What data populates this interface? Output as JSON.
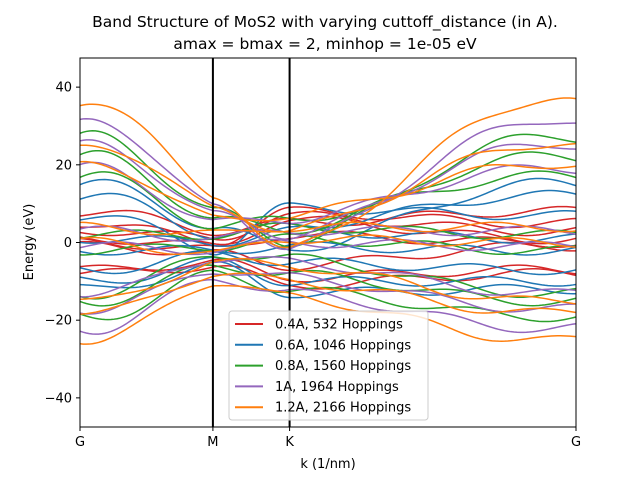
{
  "chart_data": {
    "type": "line",
    "title_line1": "Band Structure of MoS2 with varying cuttoff_distance (in A).",
    "title_line2": "amax = bmax = 2, minhop = 1e-05 eV",
    "xlabel": "k (1/nm)",
    "ylabel": "Energy (eV)",
    "xlim": [
      0,
      3.732
    ],
    "ylim": [
      -47.5,
      47.5
    ],
    "x_ticks": [
      {
        "label": "G",
        "x": 0
      },
      {
        "label": "M",
        "x": 1.0
      },
      {
        "label": "K",
        "x": 1.577
      },
      {
        "label": "G",
        "x": 3.732
      }
    ],
    "y_ticks": [
      -40,
      -20,
      0,
      20,
      40
    ],
    "symmetry_lines": [
      1.0,
      1.577
    ],
    "grid": false,
    "legend_position": "lower-center",
    "series": [
      {
        "name": "0.4A, 532 Hoppings",
        "color": "#d62728",
        "bands": [
          {
            "G": -8,
            "M": -6,
            "K": -11,
            "G2": -8
          },
          {
            "G": -7,
            "M": -5,
            "K": -9,
            "G2": -7
          },
          {
            "G": -1,
            "M": -3,
            "K": -6,
            "G2": -1
          },
          {
            "G": 0,
            "M": -2,
            "K": 2,
            "G2": 0
          },
          {
            "G": 1,
            "M": -1,
            "K": 6,
            "G2": 1
          },
          {
            "G": 3,
            "M": 1,
            "K": 7,
            "G2": 3
          },
          {
            "G": 5,
            "M": 0,
            "K": 8,
            "G2": 5
          },
          {
            "G": 8,
            "M": 3,
            "K": 5,
            "G2": 8
          }
        ]
      },
      {
        "name": "0.6A, 1046 Hoppings",
        "color": "#1f77b4",
        "bands": [
          {
            "G": -12,
            "M": -6,
            "K": -13,
            "G2": -12
          },
          {
            "G": -10,
            "M": -5,
            "K": -10,
            "G2": -10
          },
          {
            "G": -7,
            "M": -3,
            "K": -5,
            "G2": -7
          },
          {
            "G": -2,
            "M": -2,
            "K": -1,
            "G2": -2
          },
          {
            "G": 1,
            "M": 0,
            "K": 3,
            "G2": 1
          },
          {
            "G": 7,
            "M": -2,
            "K": 9,
            "G2": 7
          },
          {
            "G": 12,
            "M": 2,
            "K": 4,
            "G2": 12
          },
          {
            "G": 15,
            "M": 4,
            "K": -2,
            "G2": 15
          }
        ]
      },
      {
        "name": "0.8A, 1560 Hoppings",
        "color": "#2ca02c",
        "bands": [
          {
            "G": -19,
            "M": -8,
            "K": -12,
            "G2": -19
          },
          {
            "G": -15,
            "M": -6,
            "K": -8,
            "G2": -15
          },
          {
            "G": -13,
            "M": -3,
            "K": -4,
            "G2": -13
          },
          {
            "G": -2,
            "M": -1,
            "K": 1,
            "G2": -2
          },
          {
            "G": 2,
            "M": 2,
            "K": 4,
            "G2": 2
          },
          {
            "G": 17,
            "M": 4,
            "K": 6,
            "G2": 17
          },
          {
            "G": 22,
            "M": 6,
            "K": 3,
            "G2": 22
          },
          {
            "G": 27,
            "M": 8,
            "K": 0,
            "G2": 27
          }
        ]
      },
      {
        "name": "1A, 1964 Hoppings",
        "color": "#9467bd",
        "bands": [
          {
            "G": -22,
            "M": -9,
            "K": -13,
            "G2": -22
          },
          {
            "G": -17,
            "M": -7,
            "K": -9,
            "G2": -17
          },
          {
            "G": -13,
            "M": -4,
            "K": -5,
            "G2": -13
          },
          {
            "G": -1,
            "M": -2,
            "K": 0,
            "G2": -1
          },
          {
            "G": 3,
            "M": 1,
            "K": 3,
            "G2": 3
          },
          {
            "G": 19,
            "M": 5,
            "K": 6,
            "G2": 19
          },
          {
            "G": 25,
            "M": 7,
            "K": 2,
            "G2": 25
          },
          {
            "G": 31,
            "M": 9,
            "K": -1,
            "G2": 31
          }
        ]
      },
      {
        "name": "1.2A, 2166 Hoppings",
        "color": "#ff7f0e",
        "bands": [
          {
            "G": -25,
            "M": -10,
            "K": -14,
            "G2": -25
          },
          {
            "G": -18,
            "M": -8,
            "K": -10,
            "G2": -18
          },
          {
            "G": -15,
            "M": -5,
            "K": -6,
            "G2": -15
          },
          {
            "G": 0,
            "M": -3,
            "K": 1,
            "G2": 0
          },
          {
            "G": 4,
            "M": 2,
            "K": 4,
            "G2": 4
          },
          {
            "G": 20,
            "M": 6,
            "K": 7,
            "G2": 20
          },
          {
            "G": 25,
            "M": 9,
            "K": 3,
            "G2": 25
          },
          {
            "G": 36,
            "M": 12,
            "K": -2,
            "G2": 36
          }
        ]
      }
    ]
  }
}
